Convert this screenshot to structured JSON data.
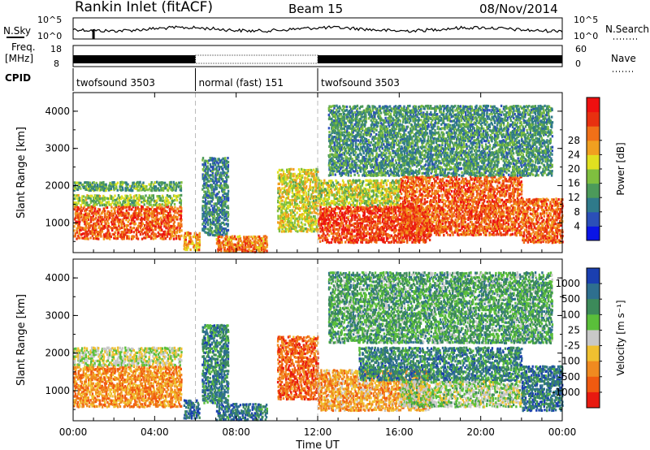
{
  "header": {
    "station": "Rankin Inlet (fitACF)",
    "beam": "Beam 15",
    "date": "08/Nov/2014"
  },
  "noise_panel": {
    "left_label": "N.Sky",
    "right_label": "N.Search",
    "left_ticks": [
      "10^5",
      "10^0"
    ],
    "right_ticks": [
      "10^5",
      "10^0"
    ]
  },
  "freq_panel": {
    "left_label": "Freq.",
    "left_unit": "[MHz]",
    "left_ticks": [
      "18",
      "8"
    ],
    "right_label": "Nave",
    "right_ticks": [
      "60",
      "0"
    ]
  },
  "cpid": {
    "label": "CPID",
    "segments": [
      {
        "name": "twofsound 3503",
        "start_hour": 0,
        "end_hour": 6
      },
      {
        "name": "normal (fast) 151",
        "start_hour": 6,
        "end_hour": 12
      },
      {
        "name": "twofsound 3503",
        "start_hour": 12,
        "end_hour": 24
      }
    ]
  },
  "chart_data": [
    {
      "type": "heatmap",
      "quantity": "power",
      "ylabel": "Slant Range [km]",
      "ylim": [
        200,
        4500
      ],
      "y_ticks": [
        "1000",
        "2000",
        "3000",
        "4000"
      ],
      "colorbar_label": "Power [dB]",
      "colorbar_ticks": [
        "4",
        "8",
        "12",
        "16",
        "20",
        "24",
        "28"
      ],
      "colorbar_colors": [
        "#0a14e6",
        "#2b4fb8",
        "#2f7a8a",
        "#4c9a5a",
        "#7fbf3f",
        "#e0e020",
        "#f0a020",
        "#f07018",
        "#e83010",
        "#ee1010"
      ],
      "regions": [
        {
          "t0": 0.0,
          "t1": 5.3,
          "r0": 600,
          "r1": 1500,
          "level": 0.82
        },
        {
          "t0": 0.0,
          "t1": 5.3,
          "r0": 1500,
          "r1": 1800,
          "level": 0.45
        },
        {
          "t0": 0.0,
          "t1": 5.3,
          "r0": 1900,
          "r1": 2150,
          "level": 0.35
        },
        {
          "t0": 5.4,
          "t1": 6.2,
          "r0": 300,
          "r1": 800,
          "level": 0.7
        },
        {
          "t0": 6.3,
          "t1": 7.6,
          "r0": 700,
          "r1": 2800,
          "level": 0.25
        },
        {
          "t0": 7.0,
          "t1": 9.5,
          "r0": 250,
          "r1": 700,
          "level": 0.75
        },
        {
          "t0": 10.0,
          "t1": 12.0,
          "r0": 800,
          "r1": 2500,
          "level": 0.55
        },
        {
          "t0": 12.0,
          "t1": 17.5,
          "r0": 500,
          "r1": 1500,
          "level": 0.88
        },
        {
          "t0": 12.0,
          "t1": 16.0,
          "r0": 1500,
          "r1": 2200,
          "level": 0.5
        },
        {
          "t0": 16.0,
          "t1": 22.0,
          "r0": 700,
          "r1": 2300,
          "level": 0.82
        },
        {
          "t0": 22.0,
          "t1": 24.0,
          "r0": 500,
          "r1": 1700,
          "level": 0.8
        },
        {
          "t0": 12.5,
          "t1": 23.5,
          "r0": 2300,
          "r1": 4200,
          "level": 0.3
        }
      ]
    },
    {
      "type": "heatmap",
      "quantity": "velocity",
      "ylabel": "Slant Range [km]",
      "ylim": [
        200,
        4500
      ],
      "y_ticks": [
        "1000",
        "2000",
        "3000",
        "4000"
      ],
      "colorbar_label": "Velocity [m s⁻¹]",
      "colorbar_ticks": [
        "1000",
        "500",
        "100",
        "25",
        "-25",
        "-100",
        "-500",
        "-1000"
      ],
      "colorbar_colors": [
        "#1a3fb0",
        "#2e6f8f",
        "#3c8a5a",
        "#5abf3a",
        "#c8c8c8",
        "#f0c030",
        "#f08a20",
        "#f05a10",
        "#e81a10"
      ],
      "regions": [
        {
          "t0": 0.0,
          "t1": 5.3,
          "r0": 600,
          "r1": 1700,
          "level": 0.75
        },
        {
          "t0": 0.0,
          "t1": 5.3,
          "r0": 1700,
          "r1": 2200,
          "level": 0.5
        },
        {
          "t0": 5.4,
          "t1": 6.2,
          "r0": 300,
          "r1": 800,
          "level": 0.1
        },
        {
          "t0": 6.3,
          "t1": 7.6,
          "r0": 700,
          "r1": 2800,
          "level": 0.2
        },
        {
          "t0": 7.0,
          "t1": 9.5,
          "r0": 250,
          "r1": 700,
          "level": 0.15
        },
        {
          "t0": 10.0,
          "t1": 12.0,
          "r0": 800,
          "r1": 2500,
          "level": 0.85
        },
        {
          "t0": 12.0,
          "t1": 17.5,
          "r0": 500,
          "r1": 1600,
          "level": 0.7
        },
        {
          "t0": 14.0,
          "t1": 22.0,
          "r0": 1300,
          "r1": 2200,
          "level": 0.2
        },
        {
          "t0": 16.0,
          "t1": 22.0,
          "r0": 600,
          "r1": 1300,
          "level": 0.45
        },
        {
          "t0": 22.0,
          "t1": 24.0,
          "r0": 500,
          "r1": 1700,
          "level": 0.15
        },
        {
          "t0": 12.5,
          "t1": 23.5,
          "r0": 2300,
          "r1": 4200,
          "level": 0.3
        }
      ]
    }
  ],
  "x_axis": {
    "label": "Time UT",
    "ticks": [
      "00:00",
      "04:00",
      "08:00",
      "12:00",
      "16:00",
      "20:00",
      "00:00"
    ],
    "range_hours": [
      0,
      24
    ]
  }
}
